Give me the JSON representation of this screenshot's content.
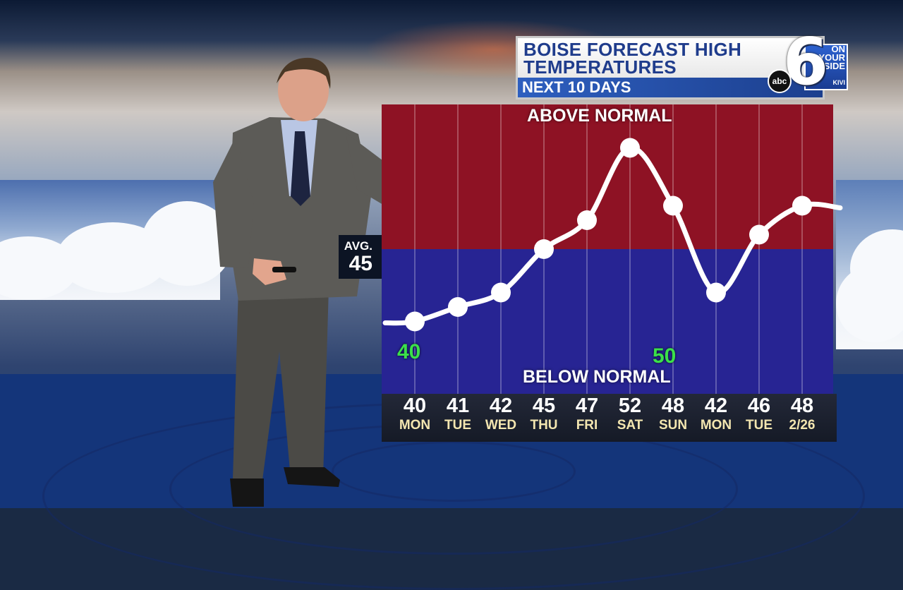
{
  "title": {
    "main": "BOISE FORECAST HIGH TEMPERATURES",
    "sub": "NEXT 10 DAYS"
  },
  "logo": {
    "number": "6",
    "tagline": "ON YOUR SIDE",
    "network": "abc",
    "station": "KIVI"
  },
  "avg": {
    "label": "AVG.",
    "value": "45"
  },
  "colors": {
    "above": "#8e1224",
    "below": "#272493",
    "line": "#ffffff",
    "green_label": "#3be04a"
  },
  "chart_data": {
    "type": "line",
    "title": "BOISE FORECAST HIGH TEMPERATURES",
    "subtitle": "NEXT 10 DAYS",
    "categories": [
      "MON",
      "TUE",
      "WED",
      "THU",
      "FRI",
      "SAT",
      "SUN",
      "MON",
      "TUE",
      "2/26"
    ],
    "values": [
      40,
      41,
      42,
      45,
      47,
      52,
      48,
      42,
      46,
      48
    ],
    "normal": 45,
    "regions": {
      "above": "ABOVE NORMAL",
      "below": "BELOW NORMAL"
    },
    "scale_labels": [
      "40",
      "50"
    ],
    "ylim": [
      35,
      55
    ],
    "grid": "vertical",
    "legend": "none"
  }
}
